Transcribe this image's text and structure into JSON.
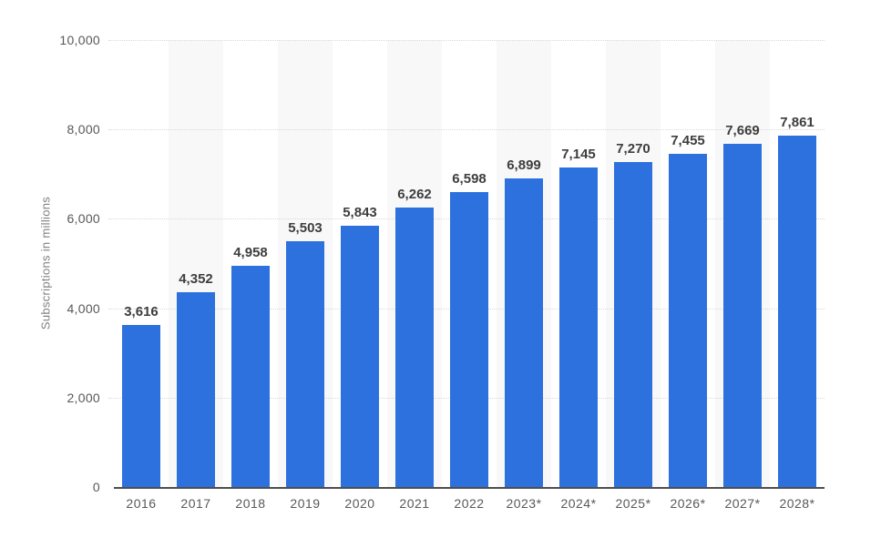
{
  "chart_data": {
    "type": "bar",
    "title": "",
    "xlabel": "",
    "ylabel": "Subscriptions in millions",
    "categories": [
      "2016",
      "2017",
      "2018",
      "2019",
      "2020",
      "2021",
      "2022",
      "2023*",
      "2024*",
      "2025*",
      "2026*",
      "2027*",
      "2028*"
    ],
    "values": [
      3616,
      4352,
      4958,
      5503,
      5843,
      6262,
      6598,
      6899,
      7145,
      7270,
      7455,
      7669,
      7861
    ],
    "value_labels": [
      "3,616",
      "4,352",
      "4,958",
      "5,503",
      "5,843",
      "6,262",
      "6,598",
      "6,899",
      "7,145",
      "7,270",
      "7,455",
      "7,669",
      "7,861"
    ],
    "ylim": [
      0,
      10000
    ],
    "yticks": [
      0,
      2000,
      4000,
      6000,
      8000,
      10000
    ],
    "ytick_labels": [
      "0",
      "2,000",
      "4,000",
      "6,000",
      "8,000",
      "10,000"
    ],
    "grid": "horizontal-dotted",
    "legend": "none",
    "colors": {
      "bar": "#2d71de",
      "column_stripe": "#f8f8f8",
      "value_label": "#3f3d3d",
      "axis_text": "#585858",
      "y_axis_title_text": "#808080",
      "axis_line": "#4e4e4e",
      "gridline": "#d9d9d9",
      "background": "#ffffff"
    }
  }
}
